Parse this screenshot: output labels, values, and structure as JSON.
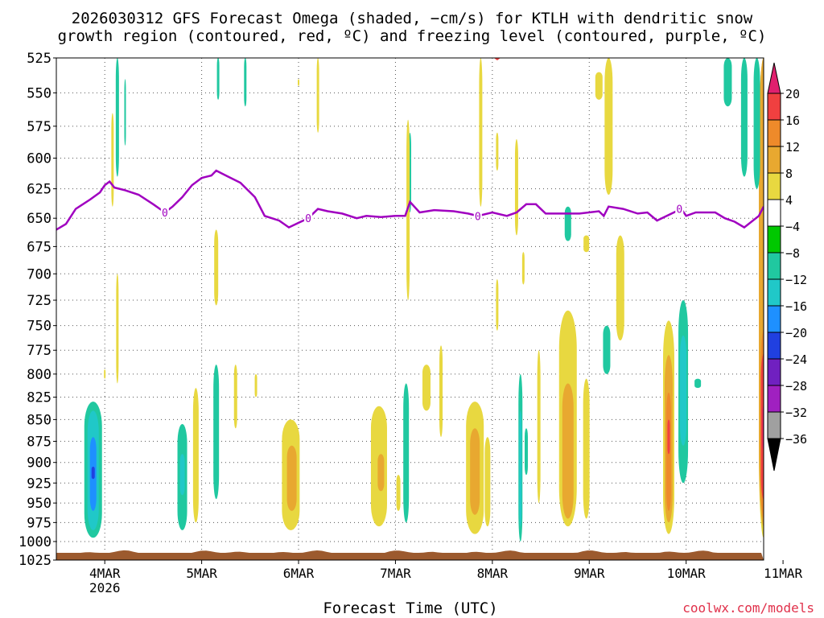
{
  "title_line1": "2026030312 GFS Forecast Omega (shaded, −cm/s) for KTLH with dendritic snow",
  "title_line2": "growth region (contoured, red, ºC) and freezing level (contoured, purple, ºC)",
  "credit": "coolwx.com/models",
  "chart_data": {
    "type": "heatmap",
    "xlabel": "Forecast Time (UTC)",
    "x_ticks": [
      "4MAR\n2026",
      "5MAR",
      "6MAR",
      "7MAR",
      "8MAR",
      "9MAR",
      "10MAR",
      "11MAR"
    ],
    "x_range_days": [
      3.5,
      10.8
    ],
    "ylabel": "",
    "y_ticks": [
      525,
      550,
      575,
      600,
      625,
      650,
      675,
      700,
      725,
      750,
      775,
      800,
      825,
      850,
      875,
      900,
      925,
      950,
      975,
      1000,
      1025
    ],
    "y_range_hpa": [
      1025,
      525
    ],
    "y_scale": "log-pressure",
    "grid": true,
    "colorbar": {
      "labels": [
        "20",
        "16",
        "12",
        "8",
        "4",
        "−4",
        "−8",
        "−12",
        "−16",
        "−20",
        "−24",
        "−28",
        "−32",
        "−36"
      ],
      "colors": [
        "#e0206e",
        "#f04040",
        "#ee8a2a",
        "#e8a830",
        "#e8d840",
        "#ffffff",
        "#00c800",
        "#20c8a0",
        "#20c8c8",
        "#1e90ff",
        "#2040e0",
        "#7020c0",
        "#a020c0",
        "#a0a0a0",
        "#000000"
      ]
    },
    "freezing_level": {
      "label": "0",
      "color": "#a000c0",
      "points": [
        [
          3.5,
          660
        ],
        [
          3.6,
          655
        ],
        [
          3.7,
          642
        ],
        [
          3.85,
          634
        ],
        [
          3.95,
          628
        ],
        [
          4.0,
          622
        ],
        [
          4.05,
          619
        ],
        [
          4.1,
          624
        ],
        [
          4.2,
          626
        ],
        [
          4.35,
          630
        ],
        [
          4.5,
          638
        ],
        [
          4.62,
          645
        ],
        [
          4.7,
          640
        ],
        [
          4.8,
          632
        ],
        [
          4.9,
          622
        ],
        [
          5.0,
          616
        ],
        [
          5.1,
          614
        ],
        [
          5.15,
          610
        ],
        [
          5.25,
          614
        ],
        [
          5.4,
          620
        ],
        [
          5.55,
          632
        ],
        [
          5.65,
          648
        ],
        [
          5.8,
          652
        ],
        [
          5.9,
          658
        ],
        [
          6.0,
          654
        ],
        [
          6.1,
          650
        ],
        [
          6.2,
          642
        ],
        [
          6.3,
          644
        ],
        [
          6.45,
          646
        ],
        [
          6.6,
          650
        ],
        [
          6.7,
          648
        ],
        [
          6.85,
          649
        ],
        [
          7.0,
          648
        ],
        [
          7.1,
          648
        ],
        [
          7.15,
          636
        ],
        [
          7.25,
          645
        ],
        [
          7.4,
          643
        ],
        [
          7.6,
          644
        ],
        [
          7.75,
          646
        ],
        [
          7.85,
          648
        ],
        [
          8.0,
          645
        ],
        [
          8.15,
          648
        ],
        [
          8.25,
          645
        ],
        [
          8.35,
          638
        ],
        [
          8.45,
          638
        ],
        [
          8.55,
          646
        ],
        [
          8.7,
          646
        ],
        [
          8.9,
          646
        ],
        [
          9.1,
          644
        ],
        [
          9.15,
          648
        ],
        [
          9.2,
          640
        ],
        [
          9.35,
          642
        ],
        [
          9.5,
          646
        ],
        [
          9.6,
          645
        ],
        [
          9.7,
          652
        ],
        [
          9.8,
          648
        ],
        [
          9.9,
          644
        ],
        [
          9.95,
          642
        ],
        [
          10.0,
          648
        ],
        [
          10.1,
          645
        ],
        [
          10.3,
          645
        ],
        [
          10.4,
          650
        ],
        [
          10.5,
          653
        ],
        [
          10.6,
          658
        ],
        [
          10.75,
          648
        ],
        [
          10.8,
          640
        ]
      ]
    },
    "dgz_contour": {
      "color": "#f04040",
      "points": [
        [
          7.95,
          521
        ],
        [
          8.05,
          526
        ],
        [
          8.15,
          521
        ]
      ]
    },
    "omega_features": [
      {
        "day": 3.88,
        "p1": 830,
        "p2": 995,
        "w": 22,
        "v": -8
      },
      {
        "day": 3.88,
        "p1": 840,
        "p2": 985,
        "w": 14,
        "v": -12
      },
      {
        "day": 3.88,
        "p1": 870,
        "p2": 960,
        "w": 8,
        "v": -16
      },
      {
        "day": 3.88,
        "p1": 905,
        "p2": 920,
        "w": 4,
        "v": -20
      },
      {
        "day": 4.13,
        "p1": 525,
        "p2": 615,
        "w": 4,
        "v": -8
      },
      {
        "day": 4.21,
        "p1": 540,
        "p2": 590,
        "w": 2,
        "v": -8
      },
      {
        "day": 4.08,
        "p1": 565,
        "p2": 640,
        "w": 3,
        "v": 4
      },
      {
        "day": 4.13,
        "p1": 700,
        "p2": 810,
        "w": 3,
        "v": 4
      },
      {
        "day": 4.0,
        "p1": 795,
        "p2": 805,
        "w": 2,
        "v": 4
      },
      {
        "day": 4.8,
        "p1": 855,
        "p2": 985,
        "w": 12,
        "v": -8
      },
      {
        "day": 4.8,
        "p1": 890,
        "p2": 940,
        "w": 6,
        "v": -12
      },
      {
        "day": 4.94,
        "p1": 815,
        "p2": 975,
        "w": 7,
        "v": 4
      },
      {
        "day": 5.15,
        "p1": 790,
        "p2": 945,
        "w": 7,
        "v": -8
      },
      {
        "day": 5.17,
        "p1": 525,
        "p2": 555,
        "w": 3,
        "v": -8
      },
      {
        "day": 5.45,
        "p1": 525,
        "p2": 560,
        "w": 3,
        "v": -8
      },
      {
        "day": 5.15,
        "p1": 660,
        "p2": 730,
        "w": 5,
        "v": 4
      },
      {
        "day": 5.35,
        "p1": 790,
        "p2": 860,
        "w": 4,
        "v": 4
      },
      {
        "day": 5.56,
        "p1": 800,
        "p2": 825,
        "w": 3,
        "v": 4
      },
      {
        "day": 5.92,
        "p1": 850,
        "p2": 985,
        "w": 22,
        "v": 4
      },
      {
        "day": 5.93,
        "p1": 880,
        "p2": 960,
        "w": 12,
        "v": 8
      },
      {
        "day": 6.2,
        "p1": 525,
        "p2": 580,
        "w": 3,
        "v": 4
      },
      {
        "day": 6.0,
        "p1": 540,
        "p2": 545,
        "w": 2,
        "v": 4
      },
      {
        "day": 6.83,
        "p1": 835,
        "p2": 980,
        "w": 20,
        "v": 4
      },
      {
        "day": 6.85,
        "p1": 890,
        "p2": 935,
        "w": 8,
        "v": 8
      },
      {
        "day": 7.03,
        "p1": 915,
        "p2": 960,
        "w": 5,
        "v": 4
      },
      {
        "day": 7.11,
        "p1": 810,
        "p2": 975,
        "w": 7,
        "v": -8
      },
      {
        "day": 7.15,
        "p1": 580,
        "p2": 645,
        "w": 3,
        "v": -8
      },
      {
        "day": 7.13,
        "p1": 570,
        "p2": 725,
        "w": 4,
        "v": 4
      },
      {
        "day": 7.32,
        "p1": 790,
        "p2": 840,
        "w": 10,
        "v": 4
      },
      {
        "day": 7.47,
        "p1": 770,
        "p2": 870,
        "w": 4,
        "v": 4
      },
      {
        "day": 7.82,
        "p1": 830,
        "p2": 990,
        "w": 22,
        "v": 4
      },
      {
        "day": 7.82,
        "p1": 860,
        "p2": 965,
        "w": 12,
        "v": 8
      },
      {
        "day": 7.95,
        "p1": 870,
        "p2": 980,
        "w": 7,
        "v": 4
      },
      {
        "day": 7.88,
        "p1": 525,
        "p2": 640,
        "w": 4,
        "v": 4
      },
      {
        "day": 8.05,
        "p1": 580,
        "p2": 610,
        "w": 3,
        "v": 4
      },
      {
        "day": 8.05,
        "p1": 705,
        "p2": 755,
        "w": 3,
        "v": 4
      },
      {
        "day": 8.25,
        "p1": 585,
        "p2": 665,
        "w": 4,
        "v": 4
      },
      {
        "day": 8.29,
        "p1": 800,
        "p2": 1000,
        "w": 5,
        "v": -8
      },
      {
        "day": 8.29,
        "p1": 840,
        "p2": 980,
        "w": 3,
        "v": -12
      },
      {
        "day": 8.32,
        "p1": 680,
        "p2": 710,
        "w": 3,
        "v": 4
      },
      {
        "day": 8.35,
        "p1": 860,
        "p2": 915,
        "w": 4,
        "v": -8
      },
      {
        "day": 8.48,
        "p1": 775,
        "p2": 950,
        "w": 4,
        "v": 4
      },
      {
        "day": 8.78,
        "p1": 735,
        "p2": 980,
        "w": 22,
        "v": 4
      },
      {
        "day": 8.78,
        "p1": 810,
        "p2": 970,
        "w": 14,
        "v": 8
      },
      {
        "day": 8.97,
        "p1": 805,
        "p2": 970,
        "w": 8,
        "v": 4
      },
      {
        "day": 8.78,
        "p1": 640,
        "p2": 670,
        "w": 8,
        "v": -8
      },
      {
        "day": 8.97,
        "p1": 665,
        "p2": 680,
        "w": 7,
        "v": 4
      },
      {
        "day": 9.1,
        "p1": 535,
        "p2": 555,
        "w": 9,
        "v": 4
      },
      {
        "day": 9.2,
        "p1": 525,
        "p2": 630,
        "w": 10,
        "v": 4
      },
      {
        "day": 9.18,
        "p1": 750,
        "p2": 800,
        "w": 9,
        "v": -8
      },
      {
        "day": 9.32,
        "p1": 665,
        "p2": 765,
        "w": 10,
        "v": 4
      },
      {
        "day": 9.82,
        "p1": 745,
        "p2": 990,
        "w": 14,
        "v": 4
      },
      {
        "day": 9.82,
        "p1": 780,
        "p2": 975,
        "w": 10,
        "v": 8
      },
      {
        "day": 9.82,
        "p1": 820,
        "p2": 960,
        "w": 6,
        "v": 12
      },
      {
        "day": 9.82,
        "p1": 850,
        "p2": 890,
        "w": 3,
        "v": 16
      },
      {
        "day": 9.97,
        "p1": 725,
        "p2": 925,
        "w": 12,
        "v": -8
      },
      {
        "day": 9.97,
        "p1": 760,
        "p2": 880,
        "w": 8,
        "v": -12
      },
      {
        "day": 10.12,
        "p1": 805,
        "p2": 815,
        "w": 8,
        "v": -8
      },
      {
        "day": 10.43,
        "p1": 525,
        "p2": 560,
        "w": 10,
        "v": -8
      },
      {
        "day": 10.6,
        "p1": 525,
        "p2": 615,
        "w": 8,
        "v": -8
      },
      {
        "day": 10.8,
        "p1": 525,
        "p2": 995,
        "w": 12,
        "v": 4
      },
      {
        "day": 10.8,
        "p1": 525,
        "p2": 980,
        "w": 12,
        "v": 8
      },
      {
        "day": 10.82,
        "p1": 750,
        "p2": 975,
        "w": 12,
        "v": 12
      },
      {
        "day": 10.82,
        "p1": 775,
        "p2": 950,
        "w": 12,
        "v": 16
      },
      {
        "day": 10.83,
        "p1": 830,
        "p2": 890,
        "w": 10,
        "v": 20
      },
      {
        "day": 10.73,
        "p1": 525,
        "p2": 625,
        "w": 8,
        "v": -8
      }
    ]
  }
}
